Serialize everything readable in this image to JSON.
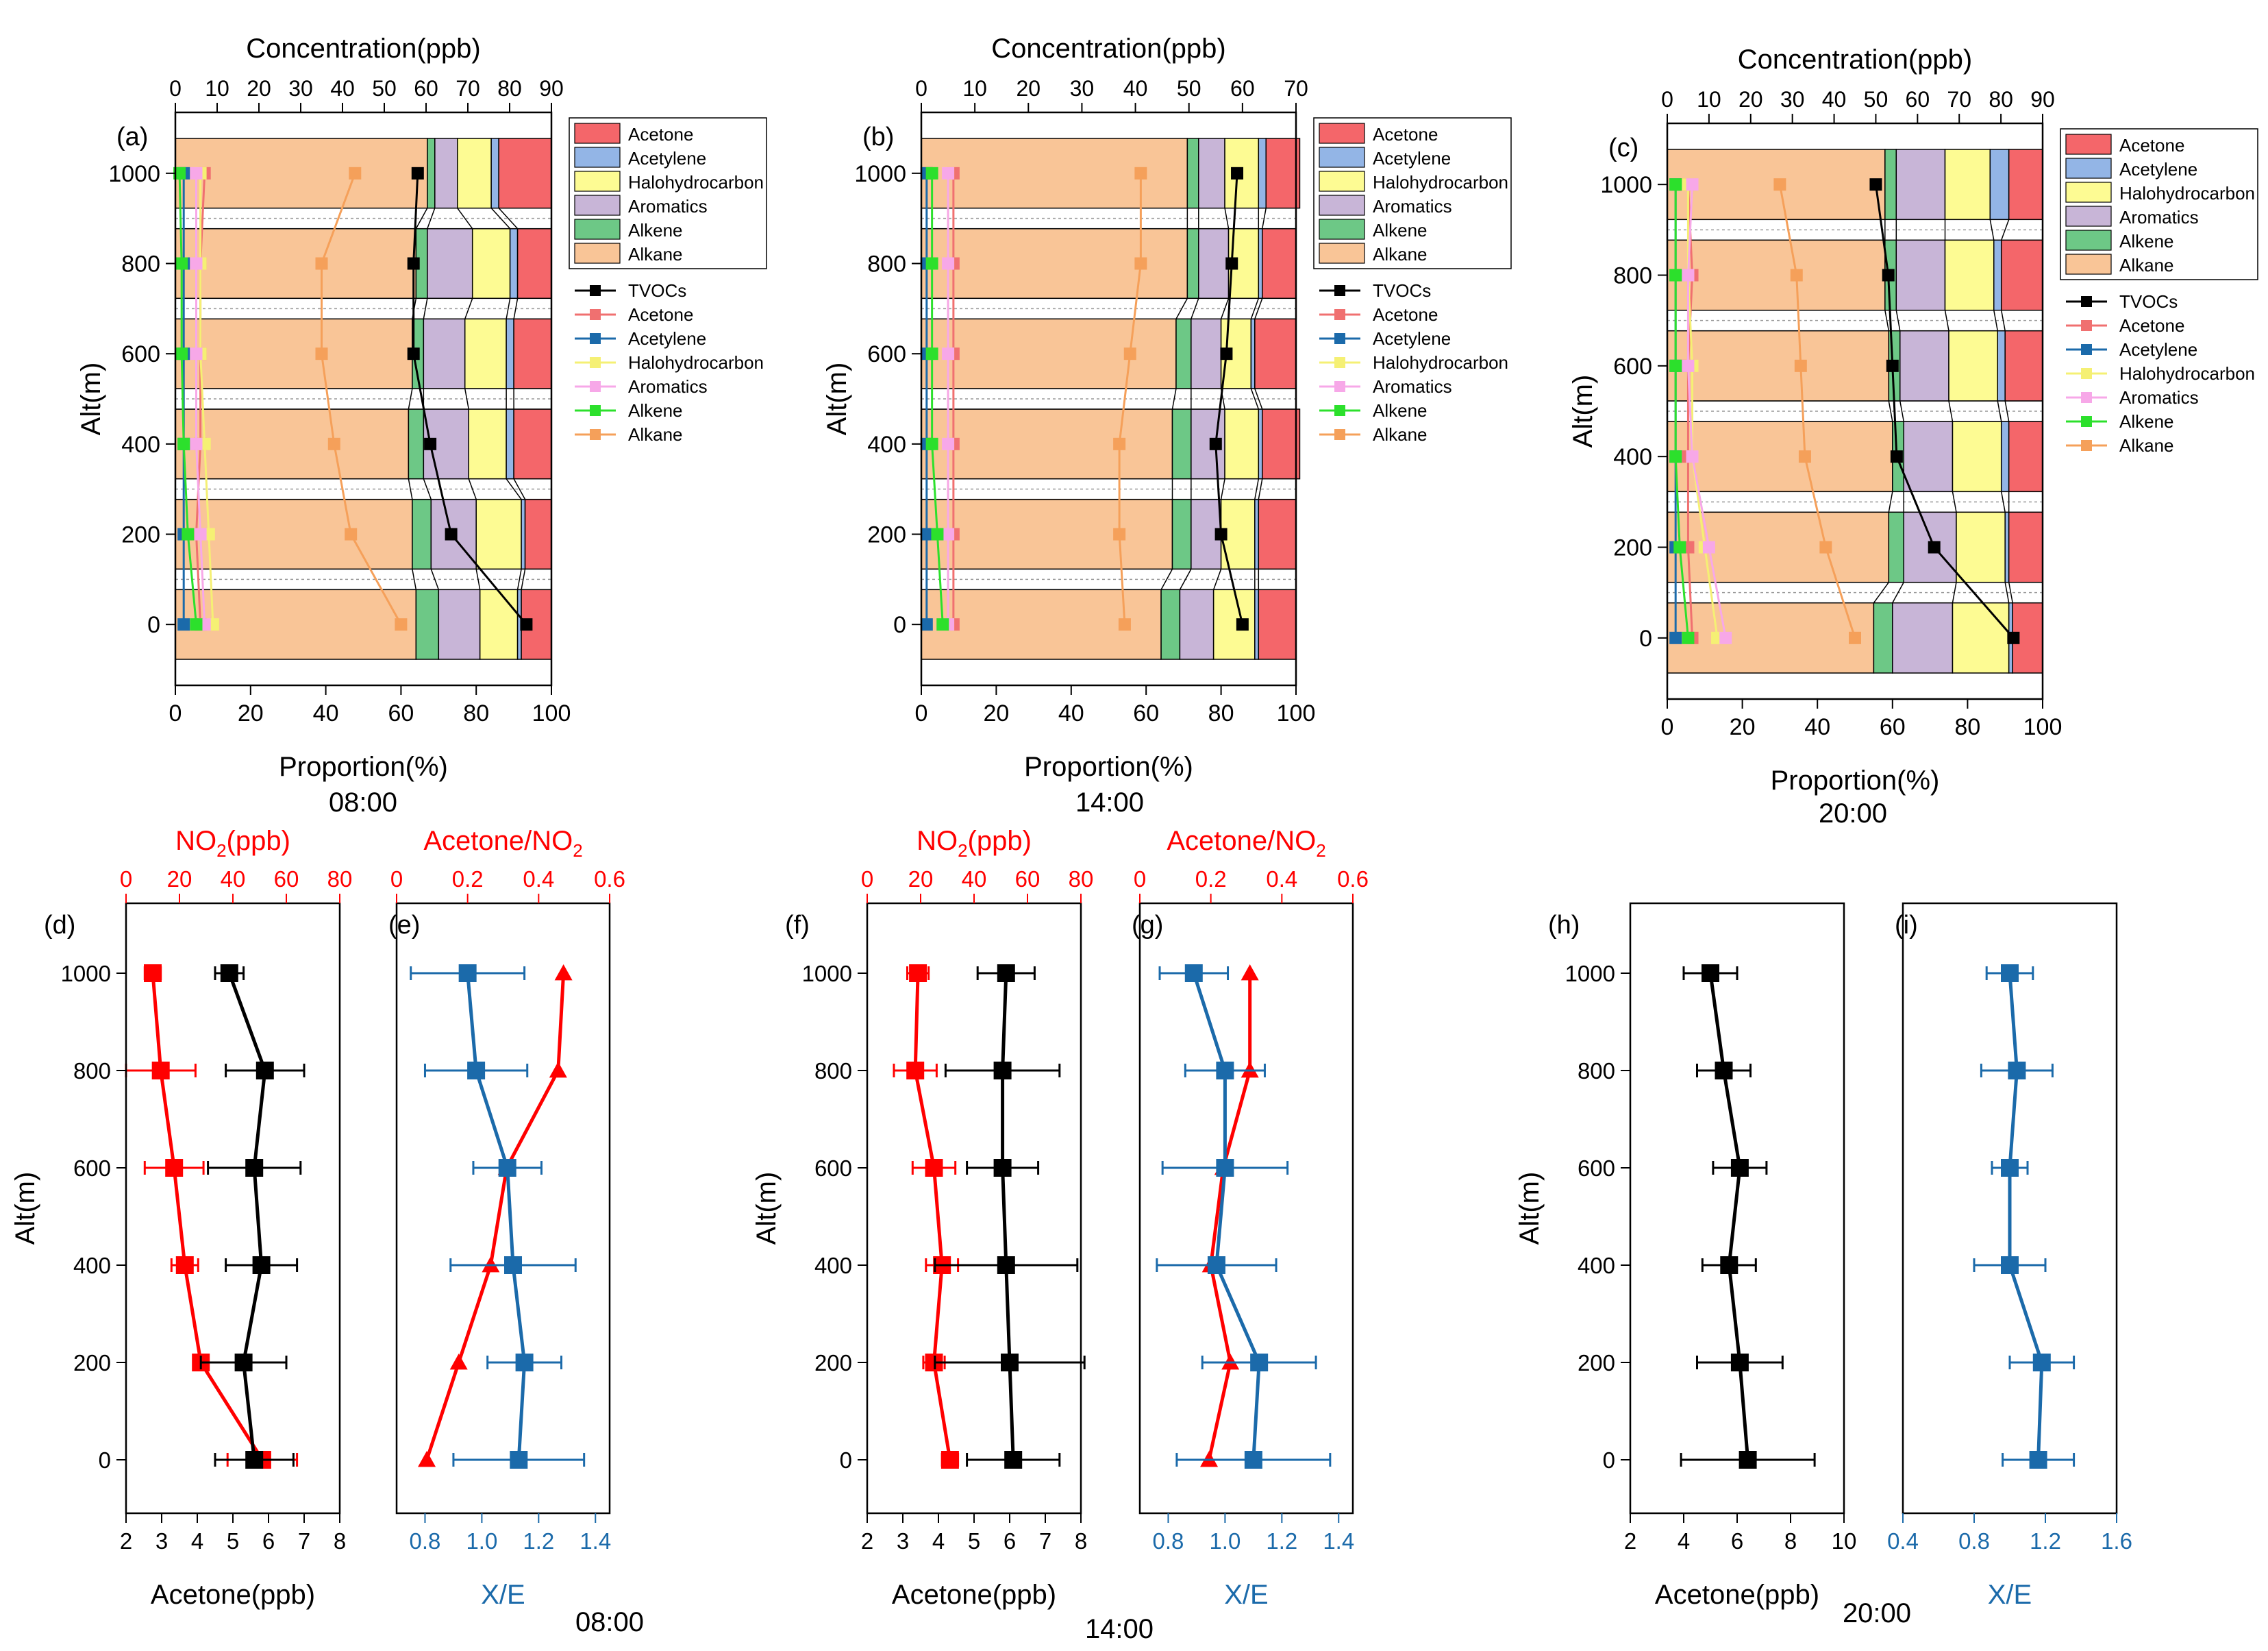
{
  "chart_data": [
    {
      "panel": "(a)",
      "type": "bar",
      "subtype": "stacked-horizontal-proportion-with-concentration-lines",
      "caption": "08:00",
      "xlabel": "Proportion(%)",
      "x2label": "Concentration(ppb)",
      "ylabel": "Alt(m)",
      "xlim": [
        0,
        100
      ],
      "xticks": [
        "0",
        "20",
        "40",
        "60",
        "80",
        "100"
      ],
      "x2lim": [
        0,
        90
      ],
      "x2ticks": [
        "0",
        "10",
        "20",
        "30",
        "40",
        "50",
        "60",
        "70",
        "80",
        "90"
      ],
      "yticks": [
        "0",
        "200",
        "400",
        "600",
        "800",
        "1000"
      ],
      "categories": [
        0,
        200,
        400,
        600,
        800,
        1000
      ],
      "proportion_series": [
        {
          "name": "Alkane",
          "color": "#f9c597",
          "values": [
            64,
            63,
            62,
            63,
            64,
            67
          ]
        },
        {
          "name": "Alkene",
          "color": "#6dc886",
          "values": [
            6,
            5,
            4,
            3,
            3,
            2
          ]
        },
        {
          "name": "Aromatics",
          "color": "#c8b5d7",
          "values": [
            11,
            12,
            12,
            11,
            12,
            6
          ]
        },
        {
          "name": "Halohydrocarbon",
          "color": "#fdfb93",
          "values": [
            10,
            12,
            10,
            11,
            10,
            9
          ]
        },
        {
          "name": "Acetylene",
          "color": "#93b5e6",
          "values": [
            1,
            1,
            2,
            2,
            2,
            2
          ]
        },
        {
          "name": "Acetone",
          "color": "#f4666a",
          "values": [
            8,
            7,
            10,
            10,
            9,
            14
          ]
        }
      ],
      "concentration_series": [
        {
          "name": "TVOCs",
          "color": "#000000",
          "values": [
            84,
            66,
            61,
            57,
            57,
            58
          ]
        },
        {
          "name": "Acetone",
          "color": "#f07070",
          "values": [
            6,
            5,
            6,
            6,
            6,
            7
          ]
        },
        {
          "name": "Acetylene",
          "color": "#1b6aaa",
          "values": [
            2,
            2,
            2,
            2,
            2,
            2
          ]
        },
        {
          "name": "Halohydrocarbon",
          "color": "#f5f074",
          "values": [
            9,
            8,
            7,
            6,
            6,
            6
          ]
        },
        {
          "name": "Aromatics",
          "color": "#f7a8e8",
          "values": [
            7,
            6,
            5,
            5,
            5,
            5
          ]
        },
        {
          "name": "Alkene",
          "color": "#2ce02c",
          "values": [
            5,
            3,
            2,
            1.5,
            1.5,
            1
          ]
        },
        {
          "name": "Alkane",
          "color": "#f5a05a",
          "values": [
            54,
            42,
            38,
            35,
            35,
            43
          ]
        }
      ],
      "legend_bars": [
        "Acetone",
        "Acetylene",
        "Halohydrocarbon",
        "Aromatics",
        "Alkene",
        "Alkane"
      ],
      "legend_lines": [
        "TVOCs",
        "Acetone",
        "Acetylene",
        "Halohydrocarbon",
        "Aromatics",
        "Alkene",
        "Alkane"
      ]
    },
    {
      "panel": "(b)",
      "type": "bar",
      "subtype": "stacked-horizontal-proportion-with-concentration-lines",
      "caption": "14:00",
      "xlabel": "Proportion(%)",
      "x2label": "Concentration(ppb)",
      "ylabel": "Alt(m)",
      "xlim": [
        0,
        100
      ],
      "xticks": [
        "0",
        "20",
        "40",
        "60",
        "80",
        "100"
      ],
      "x2lim": [
        0,
        70
      ],
      "x2ticks": [
        "0",
        "10",
        "20",
        "30",
        "40",
        "50",
        "60",
        "70"
      ],
      "yticks": [
        "0",
        "200",
        "400",
        "600",
        "800",
        "1000"
      ],
      "categories": [
        0,
        200,
        400,
        600,
        800,
        1000
      ],
      "proportion_series": [
        {
          "name": "Alkane",
          "color": "#f9c597",
          "values": [
            64,
            67,
            67,
            68,
            71,
            71
          ]
        },
        {
          "name": "Alkene",
          "color": "#6dc886",
          "values": [
            5,
            5,
            5,
            4,
            3,
            3
          ]
        },
        {
          "name": "Aromatics",
          "color": "#c8b5d7",
          "values": [
            9,
            8,
            9,
            8,
            8,
            7
          ]
        },
        {
          "name": "Halohydrocarbon",
          "color": "#fdfb93",
          "values": [
            11,
            9,
            9,
            8,
            8,
            9
          ]
        },
        {
          "name": "Acetylene",
          "color": "#93b5e6",
          "values": [
            1,
            1,
            1,
            1,
            1,
            2
          ]
        },
        {
          "name": "Acetone",
          "color": "#f4666a",
          "values": [
            10,
            10,
            10,
            11,
            9,
            9
          ]
        }
      ],
      "concentration_series": [
        {
          "name": "TVOCs",
          "color": "#000000",
          "values": [
            60,
            56,
            55,
            57,
            58,
            59
          ]
        },
        {
          "name": "Acetone",
          "color": "#f07070",
          "values": [
            6,
            6,
            6,
            6,
            6,
            6
          ]
        },
        {
          "name": "Acetylene",
          "color": "#1b6aaa",
          "values": [
            1,
            1,
            1,
            1,
            1,
            1
          ]
        },
        {
          "name": "Halohydrocarbon",
          "color": "#f5f074",
          "values": [
            5,
            5,
            5,
            5,
            5,
            5
          ]
        },
        {
          "name": "Aromatics",
          "color": "#f7a8e8",
          "values": [
            5,
            5,
            5,
            5,
            5,
            5
          ]
        },
        {
          "name": "Alkene",
          "color": "#2ce02c",
          "values": [
            4,
            3,
            2,
            2,
            2,
            2
          ]
        },
        {
          "name": "Alkane",
          "color": "#f5a05a",
          "values": [
            38,
            37,
            37,
            39,
            41,
            41
          ]
        }
      ],
      "legend_bars": [
        "Acetone",
        "Acetylene",
        "Halohydrocarbon",
        "Aromatics",
        "Alkene",
        "Alkane"
      ],
      "legend_lines": [
        "TVOCs",
        "Acetone",
        "Acetylene",
        "Halohydrocarbon",
        "Aromatics",
        "Alkene",
        "Alkane"
      ]
    },
    {
      "panel": "(c)",
      "type": "bar",
      "subtype": "stacked-horizontal-proportion-with-concentration-lines",
      "caption": "20:00",
      "xlabel": "Proportion(%)",
      "x2label": "Concentration(ppb)",
      "ylabel": "Alt(m)",
      "xlim": [
        0,
        100
      ],
      "xticks": [
        "0",
        "20",
        "40",
        "60",
        "80",
        "100"
      ],
      "x2lim": [
        0,
        90
      ],
      "x2ticks": [
        "0",
        "10",
        "20",
        "30",
        "40",
        "50",
        "60",
        "70",
        "80",
        "90"
      ],
      "yticks": [
        "0",
        "200",
        "400",
        "600",
        "800",
        "1000"
      ],
      "categories": [
        0,
        200,
        400,
        600,
        800,
        1000
      ],
      "proportion_series": [
        {
          "name": "Alkane",
          "color": "#f9c597",
          "values": [
            55,
            59,
            60,
            59,
            58,
            58
          ]
        },
        {
          "name": "Alkene",
          "color": "#6dc886",
          "values": [
            5,
            4,
            3,
            3,
            3,
            3
          ]
        },
        {
          "name": "Aromatics",
          "color": "#c8b5d7",
          "values": [
            16,
            14,
            13,
            13,
            13,
            13
          ]
        },
        {
          "name": "Halohydrocarbon",
          "color": "#fdfb93",
          "values": [
            15,
            13,
            13,
            13,
            13,
            12
          ]
        },
        {
          "name": "Acetylene",
          "color": "#93b5e6",
          "values": [
            1,
            1,
            2,
            2,
            2,
            5
          ]
        },
        {
          "name": "Acetone",
          "color": "#f4666a",
          "values": [
            8,
            9,
            9,
            10,
            11,
            9
          ]
        }
      ],
      "concentration_series": [
        {
          "name": "TVOCs",
          "color": "#000000",
          "values": [
            83,
            64,
            55,
            54,
            53,
            50
          ]
        },
        {
          "name": "Acetone",
          "color": "#f07070",
          "values": [
            6,
            5,
            5,
            5,
            6,
            5
          ]
        },
        {
          "name": "Acetylene",
          "color": "#1b6aaa",
          "values": [
            2,
            2,
            2,
            2,
            2,
            2
          ]
        },
        {
          "name": "Halohydrocarbon",
          "color": "#f5f074",
          "values": [
            12,
            9,
            6,
            6,
            5,
            5
          ]
        },
        {
          "name": "Aromatics",
          "color": "#f7a8e8",
          "values": [
            14,
            10,
            6,
            5,
            5,
            6
          ]
        },
        {
          "name": "Alkene",
          "color": "#2ce02c",
          "values": [
            5,
            3,
            2,
            2,
            2,
            2
          ]
        },
        {
          "name": "Alkane",
          "color": "#f5a05a",
          "values": [
            45,
            38,
            33,
            32,
            31,
            27
          ]
        }
      ],
      "legend_bars": [
        "Acetone",
        "Acetylene",
        "Halohydrocarbon",
        "Aromatics",
        "Alkene",
        "Alkane"
      ],
      "legend_lines": [
        "TVOCs",
        "Acetone",
        "Acetylene",
        "Halohydrocarbon",
        "Aromatics",
        "Alkene",
        "Alkane"
      ]
    },
    {
      "panel": "(d)",
      "type": "line",
      "caption": "08:00",
      "xlabel": "Acetone(ppb)",
      "x2label_prefix": "NO",
      "x2label_sub": "2",
      "x2label_suffix": "(ppb)",
      "ylabel": "Alt(m)",
      "xlim": [
        2,
        8
      ],
      "xticks": [
        "2",
        "3",
        "4",
        "5",
        "6",
        "7",
        "8"
      ],
      "x2lim": [
        0,
        80
      ],
      "x2ticks": [
        "0",
        "20",
        "40",
        "60",
        "80"
      ],
      "yticks": [
        "0",
        "200",
        "400",
        "600",
        "800",
        "1000"
      ],
      "y": [
        0,
        200,
        400,
        600,
        800,
        1000
      ],
      "series": [
        {
          "name": "Acetone",
          "axis": "bottom",
          "color": "#000000",
          "marker": "square",
          "values": [
            5.6,
            5.3,
            5.8,
            5.6,
            5.9,
            4.9
          ],
          "err": [
            1.1,
            1.2,
            1.0,
            1.3,
            1.1,
            0.4
          ]
        },
        {
          "name": "NO2",
          "axis": "top",
          "color": "#ff0000",
          "marker": "square",
          "values": [
            51,
            28,
            22,
            18,
            13,
            10
          ],
          "err": [
            13,
            2,
            5,
            11,
            13,
            3
          ]
        }
      ]
    },
    {
      "panel": "(e)",
      "type": "line",
      "caption": "",
      "xlabel": "X/E",
      "x2label_prefix": "Acetone/NO",
      "x2label_sub": "2",
      "x2label_suffix": "",
      "ylabel": "",
      "xlim": [
        0.7,
        1.45
      ],
      "xticks": [
        "0.8",
        "1.0",
        "1.2",
        "1.4"
      ],
      "x2lim": [
        0,
        0.6
      ],
      "x2ticks": [
        "0",
        "0.2",
        "0.4",
        "0.6"
      ],
      "yticks": [
        "0",
        "200",
        "400",
        "600",
        "800",
        "1000"
      ],
      "y": [
        0,
        200,
        400,
        600,
        800,
        1000
      ],
      "series": [
        {
          "name": "X/E",
          "axis": "bottom",
          "color": "#1b6aaa",
          "marker": "square",
          "values": [
            1.13,
            1.15,
            1.11,
            1.09,
            0.98,
            0.95
          ],
          "err": [
            0.23,
            0.13,
            0.22,
            0.12,
            0.18,
            0.2
          ]
        },
        {
          "name": "Acetone/NO2",
          "axis": "top",
          "color": "#ff0000",
          "marker": "triangle",
          "values": [
            0.085,
            0.175,
            0.265,
            0.31,
            0.455,
            0.47
          ],
          "err": [
            0,
            0,
            0,
            0,
            0,
            0
          ]
        }
      ]
    },
    {
      "panel": "(f)",
      "type": "line",
      "caption": "14:00",
      "xlabel": "Acetone(ppb)",
      "x2label_prefix": "NO",
      "x2label_sub": "2",
      "x2label_suffix": "(ppb)",
      "ylabel": "Alt(m)",
      "xlim": [
        2,
        8
      ],
      "xticks": [
        "2",
        "3",
        "4",
        "5",
        "6",
        "7",
        "8"
      ],
      "x2lim": [
        0,
        80
      ],
      "x2ticks": [
        "0",
        "20",
        "40",
        "60",
        "80"
      ],
      "yticks": [
        "0",
        "200",
        "400",
        "600",
        "800",
        "1000"
      ],
      "y": [
        0,
        200,
        400,
        600,
        800,
        1000
      ],
      "series": [
        {
          "name": "Acetone",
          "axis": "bottom",
          "color": "#000000",
          "marker": "square",
          "values": [
            6.1,
            6.0,
            5.9,
            5.8,
            5.8,
            5.9
          ],
          "err": [
            1.3,
            2.1,
            2.0,
            1.0,
            1.6,
            0.8
          ]
        },
        {
          "name": "NO2",
          "axis": "top",
          "color": "#ff0000",
          "marker": "square",
          "values": [
            31,
            25,
            28,
            25,
            18,
            19
          ],
          "err": [
            3,
            4,
            6,
            8,
            8,
            4
          ]
        }
      ]
    },
    {
      "panel": "(g)",
      "type": "line",
      "caption": "",
      "xlabel": "X/E",
      "x2label_prefix": "Acetone/NO",
      "x2label_sub": "2",
      "x2label_suffix": "",
      "ylabel": "",
      "xlim": [
        0.7,
        1.45
      ],
      "xticks": [
        "0.8",
        "1.0",
        "1.2",
        "1.4"
      ],
      "x2lim": [
        0,
        0.6
      ],
      "x2ticks": [
        "0",
        "0.2",
        "0.4",
        "0.6"
      ],
      "yticks": [
        "0",
        "200",
        "400",
        "600",
        "800",
        "1000"
      ],
      "y": [
        0,
        200,
        400,
        600,
        800,
        1000
      ],
      "series": [
        {
          "name": "X/E",
          "axis": "bottom",
          "color": "#1b6aaa",
          "marker": "square",
          "values": [
            1.1,
            1.12,
            0.97,
            1.0,
            1.0,
            0.89
          ],
          "err": [
            0.27,
            0.2,
            0.21,
            0.22,
            0.14,
            0.12
          ]
        },
        {
          "name": "Acetone/NO2",
          "axis": "top",
          "color": "#ff0000",
          "marker": "triangle",
          "values": [
            0.195,
            0.255,
            0.2,
            0.235,
            0.31,
            0.31
          ],
          "err": [
            0,
            0,
            0,
            0,
            0,
            0
          ]
        }
      ]
    },
    {
      "panel": "(h)",
      "type": "line",
      "caption": "20:00",
      "xlabel": "Acetone(ppb)",
      "ylabel": "Alt(m)",
      "xlim": [
        2,
        10
      ],
      "xticks": [
        "2",
        "4",
        "6",
        "8",
        "10"
      ],
      "yticks": [
        "0",
        "200",
        "400",
        "600",
        "800",
        "1000"
      ],
      "y": [
        0,
        200,
        400,
        600,
        800,
        1000
      ],
      "series": [
        {
          "name": "Acetone",
          "axis": "bottom",
          "color": "#000000",
          "marker": "square",
          "values": [
            6.4,
            6.1,
            5.7,
            6.1,
            5.5,
            5.0
          ],
          "err": [
            2.5,
            1.6,
            1.0,
            1.0,
            1.0,
            1.0
          ]
        }
      ]
    },
    {
      "panel": "(i)",
      "type": "line",
      "caption": "",
      "xlabel": "X/E",
      "ylabel": "",
      "xlim": [
        0.4,
        1.6
      ],
      "xticks": [
        "0.4",
        "0.8",
        "1.2",
        "1.6"
      ],
      "yticks": [
        "0",
        "200",
        "400",
        "600",
        "800",
        "1000"
      ],
      "y": [
        0,
        200,
        400,
        600,
        800,
        1000
      ],
      "series": [
        {
          "name": "X/E",
          "axis": "bottom",
          "color": "#1b6aaa",
          "marker": "square",
          "values": [
            1.16,
            1.18,
            1.0,
            1.0,
            1.04,
            1.0
          ],
          "err": [
            0.2,
            0.18,
            0.2,
            0.1,
            0.2,
            0.13
          ]
        }
      ]
    }
  ]
}
